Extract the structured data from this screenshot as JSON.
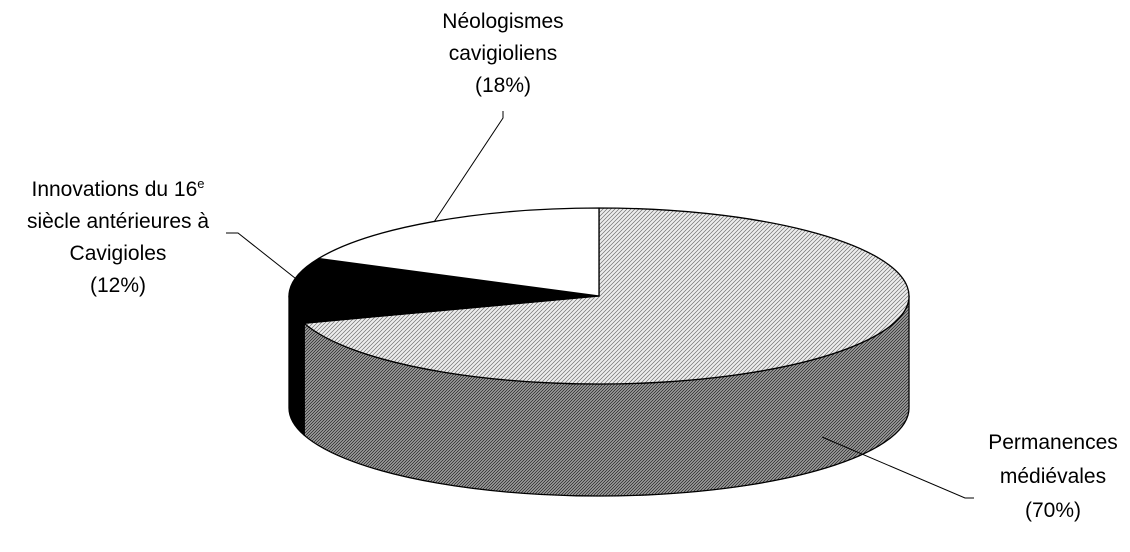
{
  "chart_data": {
    "type": "pie",
    "style": "3d",
    "categories": [
      "Permanences médiévales",
      "Innovations du 16e siècle antérieures à Cavigioles",
      "Néologismes cavigioliens"
    ],
    "values": [
      70,
      12,
      18
    ],
    "unit": "%",
    "slices": [
      {
        "label_lines": [
          "Permanences",
          "médiévales",
          "(70%)"
        ],
        "value": 70,
        "top_fill": "pattern-light",
        "side_fill": "pattern-dark",
        "leader_color": "#000000"
      },
      {
        "label_lines": [
          "Innovations du 16",
          "siècle antérieures à",
          "Cavigioles",
          "(12%)"
        ],
        "label_sup": "e",
        "value": 12,
        "top_fill": "#000000",
        "side_fill": "#000000"
      },
      {
        "label_lines": [
          "Néologismes",
          "cavigioliens",
          "(18%)"
        ],
        "value": 18,
        "top_fill": "#ffffff",
        "side_fill": "#ffffff"
      }
    ],
    "legend": "none",
    "title": ""
  }
}
